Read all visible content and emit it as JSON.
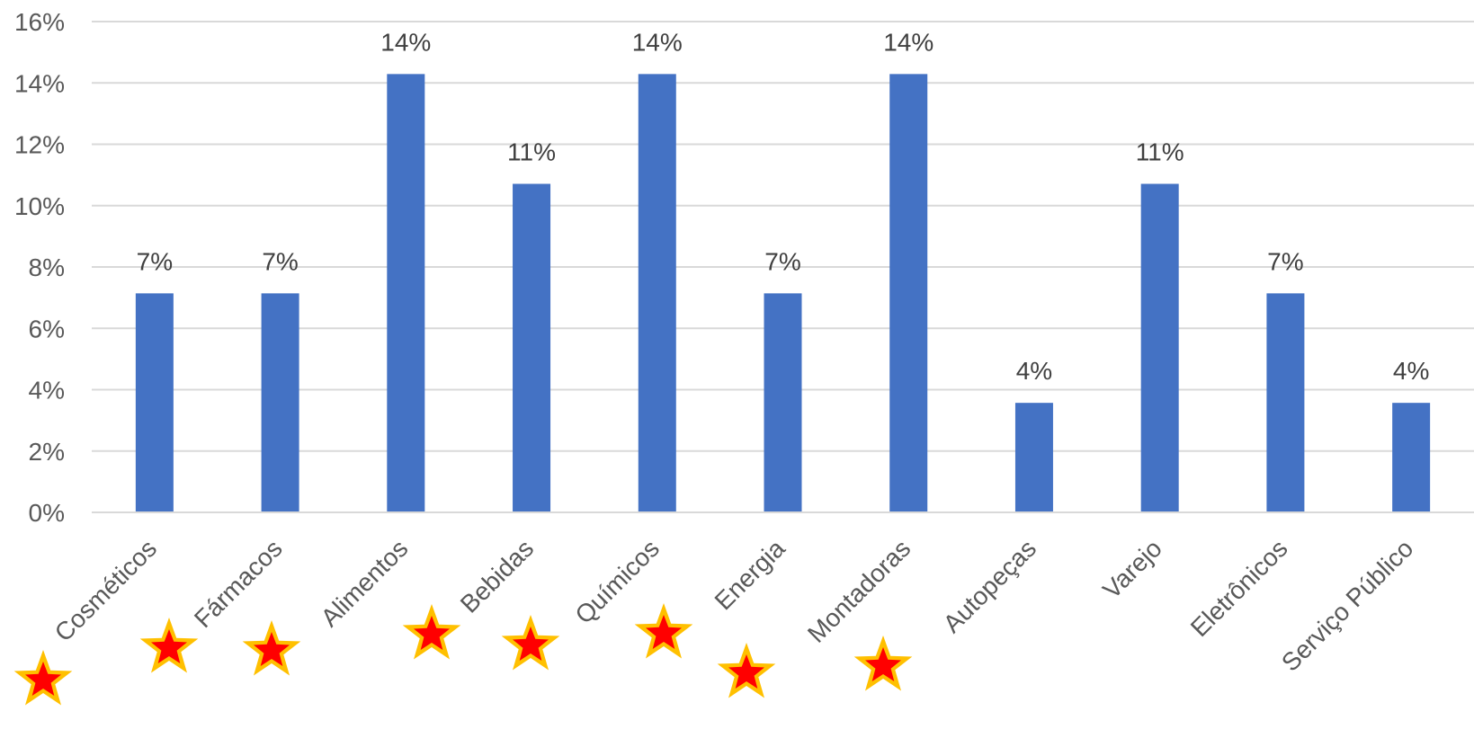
{
  "chart_data": {
    "type": "bar",
    "categories": [
      "Cosméticos",
      "Fármacos",
      "Alimentos",
      "Bebidas",
      "Químicos",
      "Energia",
      "Montadoras",
      "Autopeças",
      "Varejo",
      "Eletrônicos",
      "Serviço Público"
    ],
    "values": [
      7.14,
      7.14,
      14.29,
      10.71,
      14.29,
      7.14,
      14.29,
      3.57,
      10.71,
      7.14,
      3.57
    ],
    "data_labels": [
      "7%",
      "7%",
      "14%",
      "11%",
      "14%",
      "7%",
      "14%",
      "4%",
      "11%",
      "7%",
      "4%"
    ],
    "y_ticks": [
      "0%",
      "2%",
      "4%",
      "6%",
      "8%",
      "10%",
      "12%",
      "14%",
      "16%"
    ],
    "ylim": [
      0,
      16
    ],
    "grid": true,
    "title": "",
    "xlabel": "",
    "ylabel": "",
    "bar_color": "#4472C4",
    "marker": {
      "icon": "star-icon",
      "fill": "#FF0000",
      "outline": "#FFC000",
      "count": 8
    }
  }
}
